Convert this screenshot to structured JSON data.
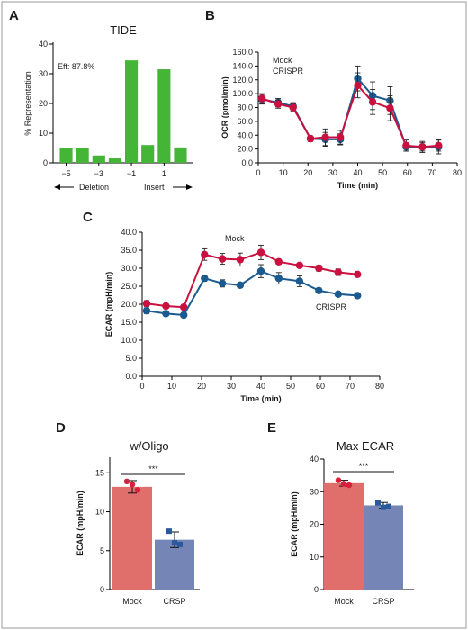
{
  "colors": {
    "green": "#44b536",
    "mock": "#c9103f",
    "crispr": "#1b5a8f",
    "mock_bar": "#e06f6b",
    "crsp_bar": "#7585b5",
    "mock_dot": "#d6203c",
    "crsp_dot": "#2a5a9b",
    "axis": "#000000",
    "frame": "#999999"
  },
  "chart_data": [
    {
      "panel": "A",
      "type": "bar",
      "title": "TIDE",
      "annotation": "Eff: 87.8%",
      "ylabel": "% Representation",
      "xlabel": "",
      "ylim": [
        0,
        40
      ],
      "yticks": [
        0,
        10,
        20,
        30,
        40
      ],
      "categories": [
        -5,
        -4,
        -3,
        -2,
        -1,
        0,
        1,
        2
      ],
      "xtick_labels": [
        "−5",
        "−3",
        "−1",
        "1"
      ],
      "values": [
        5.0,
        5.0,
        2.5,
        1.5,
        34.5,
        6.0,
        31.5,
        5.2
      ],
      "arrows": {
        "left": "Deletion",
        "right": "Insert"
      }
    },
    {
      "panel": "B",
      "type": "line",
      "title": "",
      "xlabel": "Time (min)",
      "ylabel": "OCR (pmol/min)",
      "xlim": [
        0,
        80
      ],
      "ylim": [
        0,
        160
      ],
      "xticks": [
        0,
        10,
        20,
        30,
        40,
        50,
        60,
        70,
        80
      ],
      "yticks": [
        "0.0",
        "20.0",
        "40.0",
        "60.0",
        "80.0",
        "100.0",
        "120.0",
        "140.0",
        "160.0"
      ],
      "x": [
        1.5,
        8,
        14,
        21,
        27,
        33,
        40,
        46,
        53,
        59.5,
        66,
        72.5
      ],
      "series": [
        {
          "name": "Mock",
          "values": [
            93,
            85,
            80,
            35,
            37,
            37,
            112,
            88,
            79,
            25,
            23,
            25
          ],
          "err": [
            7,
            6,
            5,
            4,
            12,
            10,
            18,
            18,
            18,
            8,
            8,
            8
          ]
        },
        {
          "name": "CRISPR",
          "values": [
            92,
            87,
            82,
            35,
            34,
            34,
            122,
            97,
            90,
            23,
            23,
            23
          ],
          "err": [
            7,
            6,
            5,
            4,
            10,
            8,
            18,
            20,
            20,
            6,
            6,
            10
          ]
        }
      ]
    },
    {
      "panel": "C",
      "type": "line",
      "title": "",
      "xlabel": "Time (min)",
      "ylabel": "ECAR (mpH/min)",
      "xlim": [
        0,
        80
      ],
      "ylim": [
        0,
        40
      ],
      "xticks": [
        0,
        10,
        20,
        30,
        40,
        50,
        60,
        70,
        80
      ],
      "yticks": [
        "0.0",
        "5.0",
        "10.0",
        "15.0",
        "20.0",
        "25.0",
        "30.0",
        "35.0",
        "40.0"
      ],
      "x": [
        1.5,
        8,
        14,
        21,
        27,
        33,
        40,
        46,
        53,
        59.5,
        66,
        72.5
      ],
      "series": [
        {
          "name": "Mock",
          "values": [
            20.2,
            19.5,
            19.2,
            33.8,
            32.6,
            32.4,
            34.4,
            31.8,
            30.8,
            30.0,
            28.9,
            28.3
          ],
          "err": [
            0.8,
            0.6,
            0.5,
            1.6,
            1.5,
            1.8,
            2.0,
            0.7,
            0.6,
            0.8,
            0.9,
            0.5
          ]
        },
        {
          "name": "CRISPR",
          "values": [
            18.2,
            17.4,
            17.0,
            27.2,
            25.8,
            25.3,
            29.2,
            27.2,
            26.4,
            23.8,
            22.8,
            22.4
          ],
          "err": [
            0.8,
            0.6,
            0.5,
            0.8,
            1.0,
            0.7,
            1.8,
            1.6,
            1.5,
            0.7,
            0.5,
            0.5
          ]
        }
      ]
    },
    {
      "panel": "D",
      "type": "bar",
      "title": "w/Oligo",
      "xlabel": "",
      "ylabel": "ECAR (mpH/min)",
      "ylim": [
        0,
        17
      ],
      "yticks": [
        0,
        5,
        10,
        15
      ],
      "categories": [
        "Mock",
        "CRSP"
      ],
      "values": [
        13.2,
        6.4
      ],
      "err": [
        0.8,
        1.0
      ],
      "points": [
        [
          13.9,
          13.5,
          12.8
        ],
        [
          7.5,
          6.0,
          5.8
        ]
      ],
      "significance": "***"
    },
    {
      "panel": "E",
      "type": "bar",
      "title": "Max ECAR",
      "xlabel": "",
      "ylabel": "ECAR (mpH/min)",
      "ylim": [
        0,
        40
      ],
      "yticks": [
        0,
        10,
        20,
        30,
        40
      ],
      "categories": [
        "Mock",
        "CRSP"
      ],
      "values": [
        32.6,
        25.8
      ],
      "err": [
        0.9,
        0.9
      ],
      "points": [
        [
          33.5,
          32.4,
          32.0
        ],
        [
          26.6,
          25.2,
          25.5
        ]
      ],
      "significance": "***"
    }
  ]
}
